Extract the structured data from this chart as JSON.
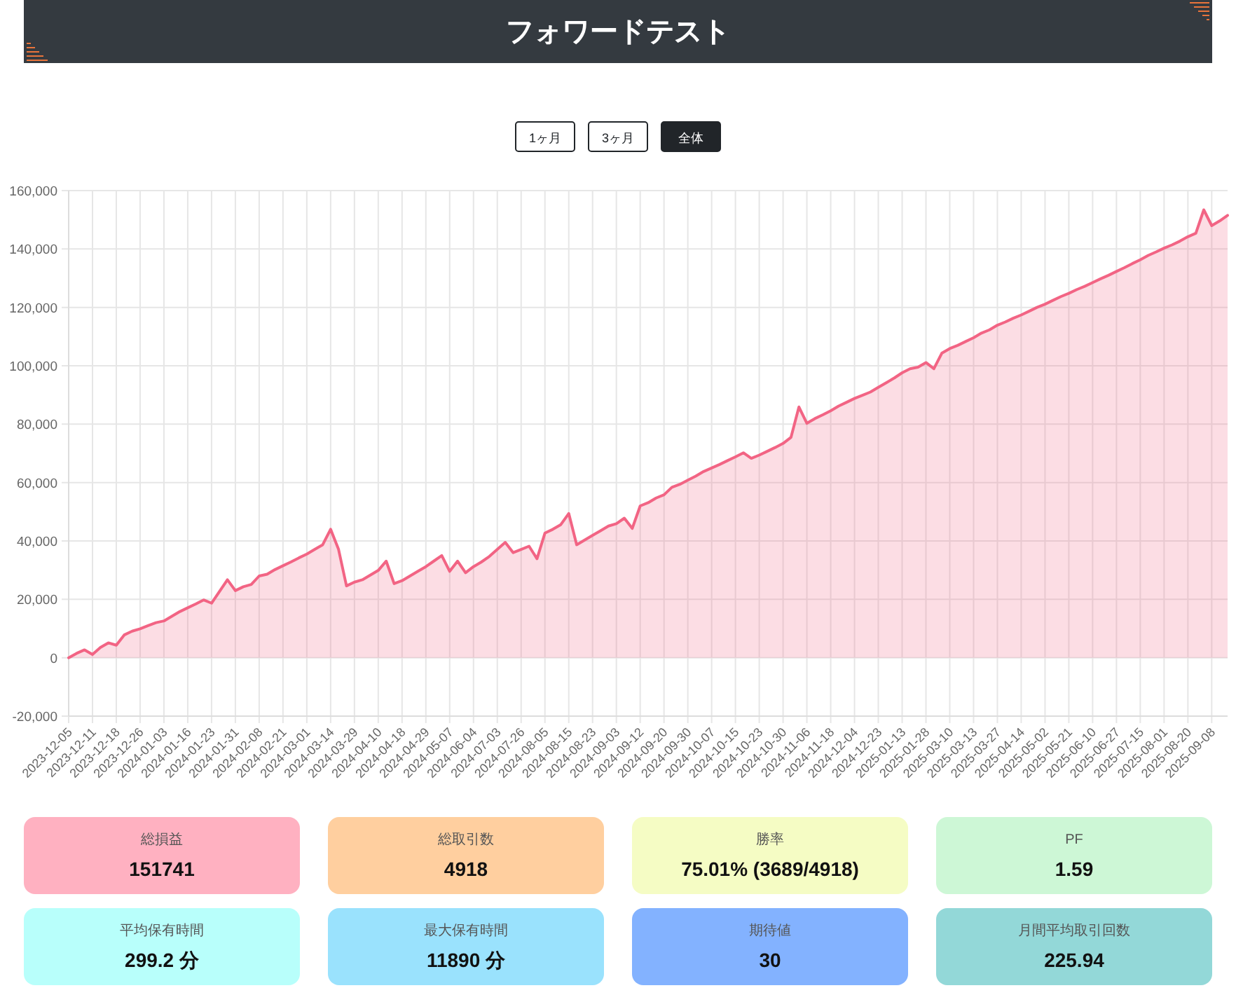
{
  "chart_data": [
    {
      "type": "area",
      "title": "フォワードテスト",
      "annotations": [
        "1ヶ月",
        "3ヶ月",
        "全体"
      ],
      "categories": [
        "2023-12-05",
        null,
        null,
        "2023-12-11",
        null,
        null,
        "2023-12-18",
        null,
        null,
        "2023-12-26",
        null,
        null,
        "2024-01-03",
        null,
        null,
        "2024-01-16",
        null,
        null,
        "2024-01-23",
        null,
        null,
        "2024-01-31",
        null,
        null,
        "2024-02-08",
        null,
        null,
        "2024-02-21",
        null,
        null,
        "2024-03-01",
        null,
        null,
        "2024-03-14",
        null,
        null,
        "2024-03-29",
        null,
        null,
        "2024-04-10",
        null,
        null,
        "2024-04-18",
        null,
        null,
        "2024-04-29",
        null,
        null,
        "2024-05-07",
        null,
        null,
        "2024-06-04",
        null,
        null,
        "2024-07-03",
        null,
        null,
        "2024-07-26",
        null,
        null,
        "2024-08-05",
        null,
        null,
        "2024-08-15",
        null,
        null,
        "2024-08-23",
        null,
        null,
        "2024-09-03",
        null,
        null,
        "2024-09-12",
        null,
        null,
        "2024-09-20",
        null,
        null,
        "2024-09-30",
        null,
        null,
        "2024-10-07",
        null,
        null,
        "2024-10-15",
        null,
        null,
        "2024-10-23",
        null,
        null,
        "2024-10-30",
        null,
        null,
        "2024-11-06",
        null,
        null,
        "2024-11-18",
        null,
        null,
        "2024-12-04",
        null,
        null,
        "2024-12-23",
        null,
        null,
        "2025-01-13",
        null,
        null,
        "2025-01-28",
        null,
        null,
        "2025-03-10",
        null,
        null,
        "2025-03-13",
        null,
        null,
        "2025-03-27",
        null,
        null,
        "2025-04-14",
        null,
        null,
        "2025-05-02",
        null,
        null,
        "2025-05-21",
        null,
        null,
        "2025-06-10",
        null,
        null,
        "2025-06-27",
        null,
        null,
        "2025-07-15",
        null,
        null,
        "2025-08-01",
        null,
        null,
        "2025-08-20",
        null,
        null,
        "2025-09-08",
        null,
        null
      ],
      "series": [
        {
          "color": "#f26484",
          "values": [
            0,
            1500,
            2700,
            1100,
            3500,
            5100,
            4300,
            7800,
            9100,
            9900,
            11000,
            12000,
            12600,
            14200,
            15800,
            17100,
            18400,
            19800,
            18700,
            22700,
            26700,
            23000,
            24300,
            25100,
            28000,
            28600,
            30200,
            31500,
            32800,
            34200,
            35500,
            37100,
            38700,
            44000,
            37100,
            24600,
            25900,
            26700,
            28300,
            29900,
            33100,
            25400,
            26400,
            28000,
            29600,
            31200,
            33100,
            35000,
            29600,
            33100,
            29100,
            31200,
            32800,
            34700,
            37100,
            39500,
            36000,
            37100,
            38200,
            33900,
            42700,
            44000,
            45600,
            49400,
            38700,
            40300,
            41900,
            43500,
            45100,
            45900,
            47800,
            44300,
            52000,
            53100,
            54700,
            55800,
            58400,
            59400,
            60800,
            62200,
            63800,
            65000,
            66200,
            67500,
            68800,
            70200,
            68300,
            69400,
            70700,
            72000,
            73400,
            75500,
            85900,
            80300,
            81900,
            83200,
            84600,
            86200,
            87500,
            88800,
            89900,
            91000,
            92600,
            94200,
            95800,
            97600,
            99000,
            99500,
            101100,
            99000,
            104300,
            105900,
            107000,
            108300,
            109600,
            111200,
            112300,
            113900,
            115000,
            116300,
            117400,
            118700,
            120000,
            121100,
            122400,
            123700,
            124800,
            126100,
            127200,
            128500,
            129800,
            131000,
            132300,
            133600,
            135000,
            136300,
            137800,
            139000,
            140300,
            141400,
            142700,
            144200,
            145400,
            153400,
            148000,
            149600,
            151500
          ]
        }
      ],
      "ylim": [
        -20000,
        160000
      ],
      "yticks": [
        {
          "value": -20000,
          "label": "-20,000"
        },
        0,
        {
          "value": 20000,
          "label": "20,000"
        },
        {
          "value": 40000,
          "label": "40,000"
        },
        {
          "value": 60000,
          "label": "60,000"
        },
        {
          "value": 80000,
          "label": "80,000"
        },
        {
          "value": 100000,
          "label": "100,000"
        },
        {
          "value": 120000,
          "label": "120,000"
        },
        {
          "value": 140000,
          "label": "140,000"
        },
        {
          "value": 160000,
          "label": "160,000"
        }
      ],
      "grid": true,
      "marker": "none",
      "line_style": "solid"
    },
    {
      "type": "other",
      "categories": [
        "総損益",
        "総取引数",
        "勝率",
        "PF",
        "平均保有時間",
        "最大保有時間",
        "期待値",
        "月間平均取引回数"
      ],
      "value_labels": [
        "151741",
        "4918",
        "75.01% (3689/4918)",
        "1.59",
        "299.2 分",
        "11890 分",
        "30",
        "225.94"
      ],
      "colors": [
        "#ffb1c1",
        "#ffcf9f",
        "#f5fcc4",
        "#cdf7d6",
        "#b8fffb",
        "#9ae2fd",
        "#83b2ff",
        "#93d8d8"
      ]
    }
  ]
}
